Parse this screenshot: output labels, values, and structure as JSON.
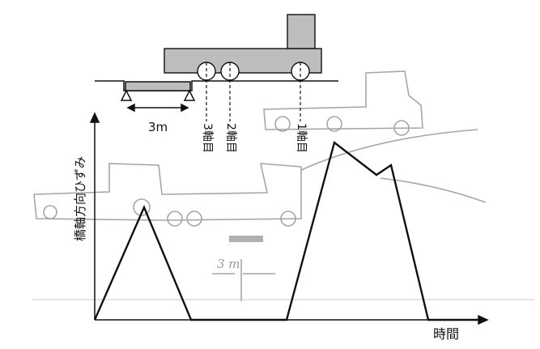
{
  "labels": {
    "span": "3m",
    "axle3": "3軸目",
    "axle2": "2軸目",
    "axle1": "1軸目",
    "y_axis": "橋軸方向ひずみ",
    "x_axis": "時間",
    "sketch_note": "3 m"
  },
  "colors": {
    "ink": "#111111",
    "truck_fill": "#bdbdbd",
    "sketch": "#9a9a9a"
  }
}
